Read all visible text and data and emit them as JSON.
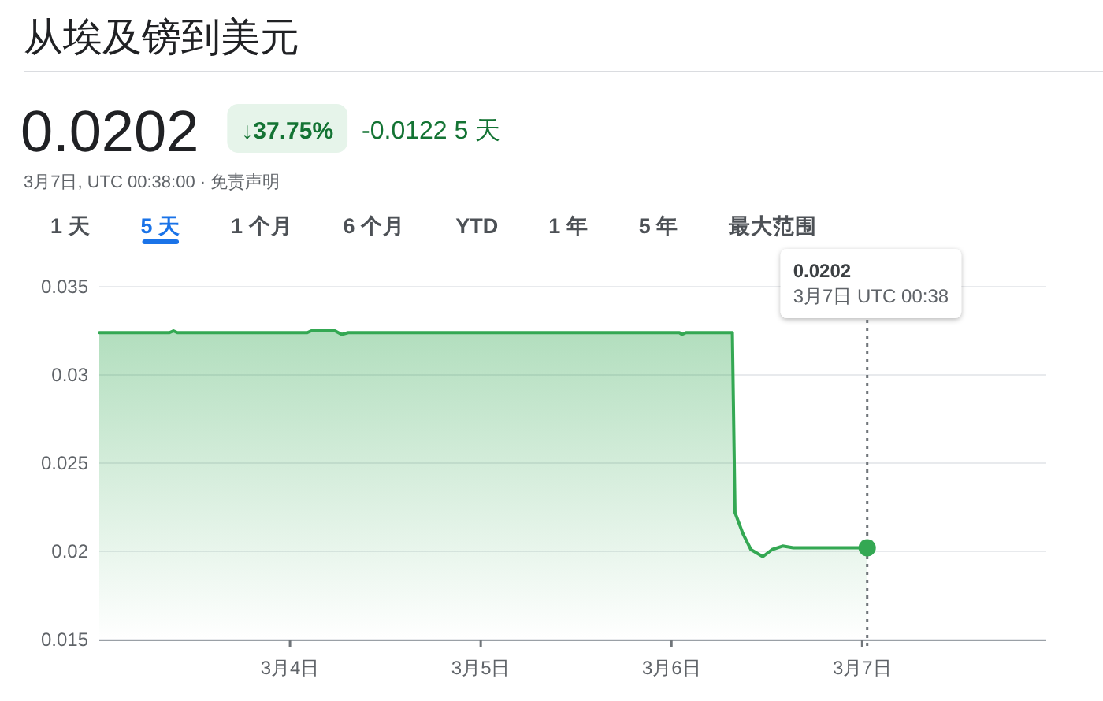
{
  "chart_data": {
    "type": "area",
    "title": "从埃及镑到美元",
    "annotations": [
      "0.0202",
      "↓37.75%",
      "-0.0122 5 天",
      "3月7日, UTC 00:38:00 · 免责声明",
      "1 天",
      "5 天",
      "1 个月",
      "6 个月",
      "YTD",
      "1 年",
      "5 年",
      "最大范围",
      "0.0202\n3月7日 UTC 00:38"
    ],
    "x": [
      "--03-03T00:00",
      "--03-03T08:50",
      "--03-03T09:20",
      "--03-03T09:50",
      "--03-03T17:50",
      "--03-04T02:10",
      "--03-04T02:40",
      "--03-04T05:40",
      "--03-04T06:30",
      "--03-04T07:20",
      "--03-04T09:40",
      "--03-05T12:00",
      "--03-06T01:00",
      "--03-06T01:20",
      "--03-06T01:50",
      "--03-06T07:40",
      "--03-06T08:00",
      "--03-06T09:00",
      "--03-06T10:00",
      "--03-06T11:30",
      "--03-06T12:40",
      "--03-06T14:00",
      "--03-06T15:20",
      "--03-06T20:00",
      "--03-07T00:38"
    ],
    "series": [
      {
        "color": "#34a853",
        "values": [
          0.0324,
          0.0324,
          0.0325,
          0.0324,
          0.0324,
          0.0324,
          0.0325,
          0.0325,
          0.0323,
          0.0324,
          0.0324,
          0.0324,
          0.0324,
          0.0323,
          0.0324,
          0.0324,
          0.0222,
          0.021,
          0.0201,
          0.0197,
          0.0201,
          0.0203,
          0.0202,
          0.0202,
          0.0202
        ]
      },
      {
        "type": "scatter",
        "color": "#34a853",
        "x": [
          "--03-07T00:38"
        ],
        "values": [
          0.0202
        ]
      }
    ],
    "xlim": [
      "--03-03T00:00",
      "--03-07T23:10"
    ],
    "xticks": [
      {
        "value": "--03-04",
        "label": "3月4日"
      },
      {
        "value": "--03-05",
        "label": "3月5日"
      },
      {
        "value": "--03-06",
        "label": "3月6日"
      },
      {
        "value": "--03-07",
        "label": "3月7日"
      }
    ],
    "ylim": [
      0.015,
      0.035
    ],
    "yticks": [
      0.015,
      0.02,
      0.025,
      0.03,
      0.035
    ],
    "grid": "y",
    "ref_lines": [
      {
        "axis": "x",
        "value": "--03-07T00:38",
        "color": "#70757a",
        "line_style": "dotted"
      }
    ]
  }
}
